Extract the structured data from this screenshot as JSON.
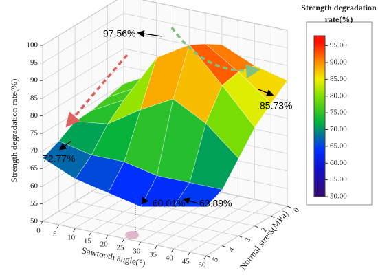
{
  "chart_data": {
    "type": "surface3d",
    "zlabel": "Strength degradation rate(%)",
    "xlabel": "Sawtooth angle(°)",
    "ylabel": "Normal stress(MPa)",
    "x": [
      0,
      10,
      20,
      30,
      40,
      50
    ],
    "y": [
      0,
      1,
      2,
      3,
      4,
      5
    ],
    "z": [
      [
        75,
        80,
        88,
        92,
        88,
        85.73
      ],
      [
        74,
        79,
        90,
        95,
        89,
        82
      ],
      [
        73,
        78,
        92,
        97.56,
        88,
        78
      ],
      [
        72.77,
        74,
        80,
        85,
        80,
        72
      ],
      [
        70,
        68,
        68,
        66,
        66,
        66
      ],
      [
        68,
        64,
        62,
        60.01,
        62,
        63.89
      ]
    ],
    "xlim": [
      0,
      50
    ],
    "xticks": [
      0,
      5,
      10,
      15,
      20,
      25,
      30,
      35,
      40,
      45,
      50
    ],
    "ylim": [
      0,
      5
    ],
    "yticks": [
      0,
      1,
      2,
      3,
      4,
      5
    ],
    "zlim": [
      50,
      100
    ],
    "zticks": [
      50,
      55,
      60,
      65,
      70,
      75,
      80,
      85,
      90,
      95,
      100
    ],
    "grid": true,
    "colorbar_title": [
      "Strength degradation",
      "rate(%)"
    ],
    "clim": [
      50,
      98
    ],
    "colorscale": [
      [
        50,
        "#3a0a6a"
      ],
      [
        58,
        "#1010c8"
      ],
      [
        64,
        "#0030ff"
      ],
      [
        72,
        "#00b040"
      ],
      [
        80,
        "#80e000"
      ],
      [
        85,
        "#f0f000"
      ],
      [
        90,
        "#ff9000"
      ],
      [
        96,
        "#ff1000"
      ]
    ],
    "cticks": [
      {
        "value": 50,
        "label": "50.00"
      },
      {
        "value": 55,
        "label": "55.00"
      },
      {
        "value": 60,
        "label": "60.00"
      },
      {
        "value": 65,
        "label": "65.00"
      },
      {
        "value": 70,
        "label": "70.00"
      },
      {
        "value": 75,
        "label": "75.00"
      },
      {
        "value": 80,
        "label": "80.00"
      },
      {
        "value": 85,
        "label": "85.00"
      },
      {
        "value": 90,
        "label": "90.00"
      },
      {
        "value": 95,
        "label": "95.00"
      }
    ],
    "annotations": [
      "97.56%",
      "85.73%",
      "72.77%",
      "60.01%",
      "63.89%"
    ]
  }
}
